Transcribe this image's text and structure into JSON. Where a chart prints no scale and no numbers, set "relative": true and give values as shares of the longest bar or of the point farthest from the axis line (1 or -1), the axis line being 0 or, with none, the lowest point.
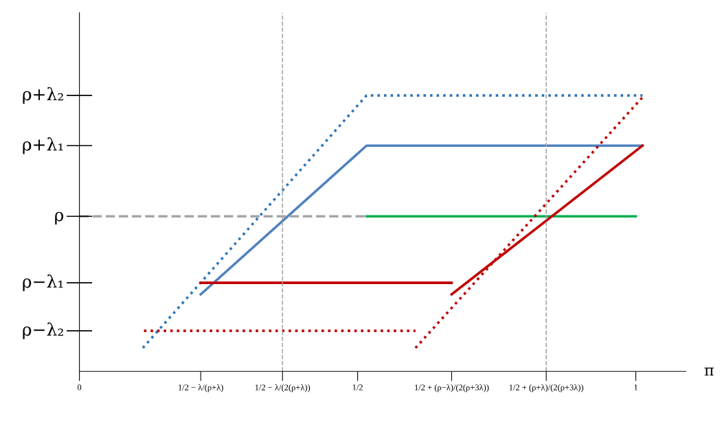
{
  "chart_data": {
    "type": "line",
    "relative": true,
    "xlabel": "π",
    "xlim": [
      0,
      1.09
    ],
    "xticks": [
      {
        "value": 0,
        "label": "0"
      },
      {
        "value": 0.218,
        "label": "1/2 − λ/(ρ+λ)"
      },
      {
        "value": 0.365,
        "label": "1/2 − λ/(2(ρ+λ))"
      },
      {
        "value": 0.5,
        "label": "1/2"
      },
      {
        "value": 0.669,
        "label": "1/2 + (ρ−λ)/(2(ρ+3λ))"
      },
      {
        "value": 0.839,
        "label": "1/2 + (ρ+λ)/(2(ρ+3λ))"
      },
      {
        "value": 1,
        "label": "1"
      }
    ],
    "grid": false,
    "legend": false,
    "marker": "none",
    "series": [
      {
        "color": "#2e75b6",
        "line_style": "dotted",
        "x": [
          0.114,
          0.516,
          1.012
        ],
        "values": [
          0.085,
          1,
          1
        ]
      },
      {
        "color": "#4f81bd",
        "line_style": "solid",
        "x": [
          0.218,
          0.516,
          1.012
        ],
        "values": [
          0.279,
          0.818,
          0.818
        ]
      },
      {
        "color": "#00b050",
        "line_style": "solid",
        "x": [
          0.516,
          1.0
        ],
        "values": [
          0.562,
          0.562
        ]
      },
      {
        "color": "#c00000",
        "line_style": "solid",
        "x": [
          0.218,
          0.669
        ],
        "values": [
          0.321,
          0.321
        ]
      },
      {
        "color": "#c00000",
        "line_style": "solid",
        "x": [
          0.669,
          1.012
        ],
        "values": [
          0.279,
          0.818
        ]
      },
      {
        "color": "#c00000",
        "line_style": "dotted",
        "x": [
          0.116,
          0.604
        ],
        "values": [
          0.147,
          0.147
        ]
      },
      {
        "color": "#c00000",
        "line_style": "dotted",
        "x": [
          0.604,
          1.015
        ],
        "values": [
          0.085,
          1
        ]
      },
      {
        "color": "#a6a6a6",
        "line_style": "dashed",
        "x": [
          0,
          0.516
        ],
        "values": [
          0.562,
          0.562
        ]
      }
    ],
    "ref_lines": [
      {
        "axis": "x",
        "value": 0.365,
        "color": "#a6a6a6",
        "line_style": "dashed"
      },
      {
        "axis": "x",
        "value": 0.839,
        "color": "#a6a6a6",
        "line_style": "dashed"
      },
      {
        "axis": "y",
        "value": 1,
        "label": "ρ+λ₂",
        "color": "#000000"
      },
      {
        "axis": "y",
        "value": 0.818,
        "label": "ρ+λ₁",
        "color": "#000000"
      },
      {
        "axis": "y",
        "value": 0.562,
        "label": "ρ",
        "color": "#000000"
      },
      {
        "axis": "y",
        "value": 0.321,
        "label": "ρ−λ₁",
        "color": "#000000"
      },
      {
        "axis": "y",
        "value": 0.147,
        "label": "ρ−λ₂",
        "color": "#000000"
      }
    ]
  }
}
